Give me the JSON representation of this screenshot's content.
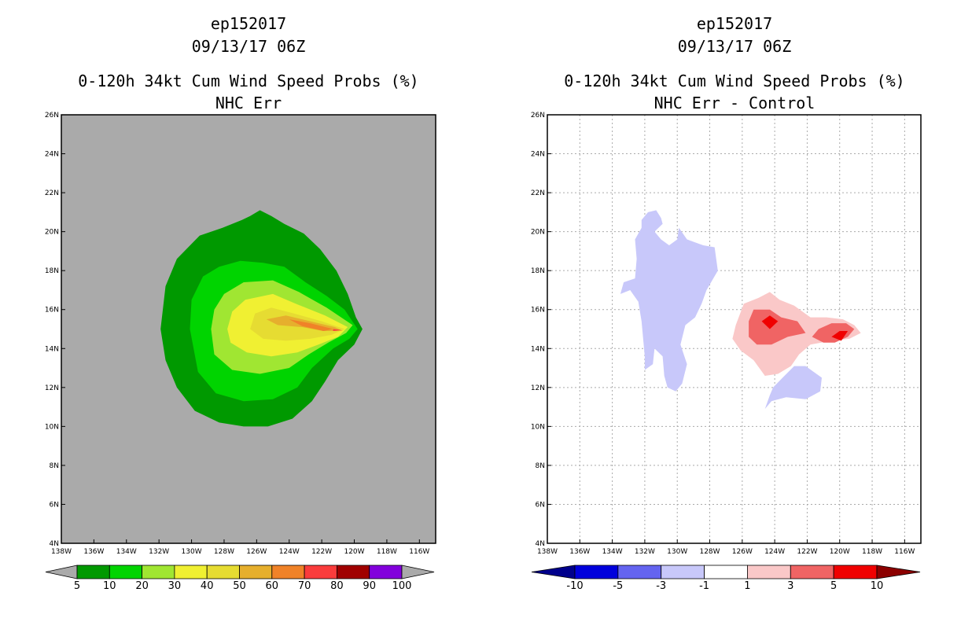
{
  "chart_data": [
    {
      "type": "contour",
      "storm_id": "ep152017",
      "datetime": "09/13/17 06Z",
      "title": "0-120h 34kt Cum Wind Speed Probs (%)",
      "subtitle": "NHC Err",
      "x_ticks": [
        "138W",
        "136W",
        "134W",
        "132W",
        "130W",
        "128W",
        "126W",
        "124W",
        "122W",
        "120W",
        "118W",
        "116W"
      ],
      "y_ticks": [
        "4N",
        "6N",
        "8N",
        "10N",
        "12N",
        "14N",
        "16N",
        "18N",
        "20N",
        "22N",
        "24N",
        "26N"
      ],
      "xlim": [
        -138,
        -115
      ],
      "ylim": [
        4,
        26
      ],
      "background_color": "#aaaaaa",
      "colorbar": {
        "labels": [
          "5",
          "10",
          "20",
          "30",
          "40",
          "50",
          "60",
          "70",
          "80",
          "90",
          "100"
        ],
        "colors": [
          "#009900",
          "#00d400",
          "#a0e632",
          "#f0f032",
          "#e6dc32",
          "#e6af2d",
          "#f08228",
          "#fa3c3c",
          "#a00000",
          "#8200dc"
        ],
        "end_color": "#aaaaaa"
      },
      "contours": [
        {
          "level": 5,
          "color": "#009900",
          "polygon": [
            [
              -131.9,
              15
            ],
            [
              -131.6,
              17.2
            ],
            [
              -130.9,
              18.6
            ],
            [
              -129.5,
              19.8
            ],
            [
              -128.1,
              20.2
            ],
            [
              -126.9,
              20.6
            ],
            [
              -126.4,
              20.8
            ],
            [
              -125.8,
              21.1
            ],
            [
              -125.1,
              20.8
            ],
            [
              -124.3,
              20.4
            ],
            [
              -123.1,
              19.9
            ],
            [
              -122.1,
              19.1
            ],
            [
              -121.1,
              18
            ],
            [
              -120.4,
              16.8
            ],
            [
              -119.9,
              15.6
            ],
            [
              -119.5,
              15.0
            ],
            [
              -120,
              14.2
            ],
            [
              -121,
              13.4
            ],
            [
              -121.8,
              12.3
            ],
            [
              -122.6,
              11.3
            ],
            [
              -123.8,
              10.4
            ],
            [
              -125.3,
              10.0
            ],
            [
              -126.8,
              10.0
            ],
            [
              -128.3,
              10.2
            ],
            [
              -129.8,
              10.8
            ],
            [
              -130.9,
              12.0
            ],
            [
              -131.6,
              13.4
            ]
          ]
        },
        {
          "level": 10,
          "color": "#00d400",
          "polygon": [
            [
              -130.1,
              15
            ],
            [
              -130.0,
              16.5
            ],
            [
              -129.3,
              17.7
            ],
            [
              -128.3,
              18.2
            ],
            [
              -127.0,
              18.5
            ],
            [
              -125.6,
              18.4
            ],
            [
              -124.3,
              18.2
            ],
            [
              -123.0,
              17.4
            ],
            [
              -121.7,
              16.7
            ],
            [
              -120.6,
              16.0
            ],
            [
              -119.8,
              15.0
            ],
            [
              -120.3,
              14.5
            ],
            [
              -121.3,
              14.0
            ],
            [
              -122.6,
              13.0
            ],
            [
              -123.5,
              12.0
            ],
            [
              -125.0,
              11.4
            ],
            [
              -126.8,
              11.3
            ],
            [
              -128.5,
              11.7
            ],
            [
              -129.6,
              12.8
            ]
          ]
        },
        {
          "level": 20,
          "color": "#a0e632",
          "polygon": [
            [
              -128.8,
              15
            ],
            [
              -128.6,
              16.0
            ],
            [
              -128.0,
              16.8
            ],
            [
              -126.8,
              17.4
            ],
            [
              -125.0,
              17.5
            ],
            [
              -123.4,
              16.9
            ],
            [
              -121.7,
              16.1
            ],
            [
              -120.1,
              15.2
            ],
            [
              -120.5,
              14.8
            ],
            [
              -121.6,
              14.3
            ],
            [
              -122.8,
              13.7
            ],
            [
              -124.0,
              13.0
            ],
            [
              -125.8,
              12.7
            ],
            [
              -127.5,
              12.9
            ],
            [
              -128.6,
              13.7
            ]
          ]
        },
        {
          "level": 30,
          "color": "#f0f032",
          "polygon": [
            [
              -127.8,
              15
            ],
            [
              -127.5,
              15.9
            ],
            [
              -126.7,
              16.5
            ],
            [
              -125.0,
              16.8
            ],
            [
              -123.6,
              16.3
            ],
            [
              -121.8,
              15.7
            ],
            [
              -120.4,
              15.1
            ],
            [
              -121.0,
              14.6
            ],
            [
              -122.2,
              14.2
            ],
            [
              -123.5,
              13.8
            ],
            [
              -125.1,
              13.6
            ],
            [
              -126.6,
              13.8
            ],
            [
              -127.6,
              14.3
            ]
          ]
        },
        {
          "level": 40,
          "color": "#e6dc32",
          "polygon": [
            [
              -126.4,
              15.0
            ],
            [
              -126.1,
              15.8
            ],
            [
              -125.1,
              16.1
            ],
            [
              -123.7,
              15.8
            ],
            [
              -122.0,
              15.4
            ],
            [
              -120.6,
              15.0
            ],
            [
              -121.4,
              14.7
            ],
            [
              -122.7,
              14.5
            ],
            [
              -124.2,
              14.4
            ],
            [
              -125.6,
              14.5
            ]
          ]
        },
        {
          "level": 50,
          "color": "#e6af2d",
          "polygon": [
            [
              -125.4,
              15.5
            ],
            [
              -124.2,
              15.7
            ],
            [
              -122.7,
              15.4
            ],
            [
              -121.2,
              15.1
            ],
            [
              -120.7,
              14.9
            ],
            [
              -121.9,
              14.9
            ],
            [
              -123.2,
              15.1
            ],
            [
              -124.7,
              15.2
            ]
          ]
        },
        {
          "level": 60,
          "color": "#f08228",
          "polygon": [
            [
              -124.0,
              15.5
            ],
            [
              -122.7,
              15.3
            ],
            [
              -121.3,
              15.0
            ],
            [
              -121.9,
              14.9
            ],
            [
              -123.2,
              15.15
            ]
          ]
        },
        {
          "level": 70,
          "color": "#fa3c3c",
          "polygon": [
            [
              -121.3,
              15.0
            ],
            [
              -120.8,
              14.95
            ],
            [
              -121.3,
              14.9
            ]
          ]
        }
      ]
    },
    {
      "type": "contour",
      "storm_id": "ep152017",
      "datetime": "09/13/17 06Z",
      "title": "0-120h 34kt Cum Wind Speed Probs (%)",
      "subtitle": "NHC Err - Control",
      "x_ticks": [
        "138W",
        "136W",
        "134W",
        "132W",
        "130W",
        "128W",
        "126W",
        "124W",
        "122W",
        "120W",
        "118W",
        "116W"
      ],
      "y_ticks": [
        "4N",
        "6N",
        "8N",
        "10N",
        "12N",
        "14N",
        "16N",
        "18N",
        "20N",
        "22N",
        "24N",
        "26N"
      ],
      "xlim": [
        -138,
        -115
      ],
      "ylim": [
        4,
        26
      ],
      "grid": true,
      "background_color": "#ffffff",
      "colorbar": {
        "labels": [
          "-10",
          "-5",
          "-3",
          "-1",
          "1",
          "3",
          "5",
          "10"
        ],
        "colors": [
          "#0000dc",
          "#6464f0",
          "#c8c8fa",
          "#ffffff",
          "#fac8c8",
          "#f06464",
          "#f00000"
        ],
        "start_color": "#00008c",
        "end_color": "#8c0000"
      },
      "contours": [
        {
          "level": -1,
          "color": "#c8c8fa",
          "polygon": [
            [
              -132.2,
              20.6
            ],
            [
              -131.8,
              21.0
            ],
            [
              -131.3,
              21.1
            ],
            [
              -131.0,
              20.7
            ],
            [
              -130.9,
              20.4
            ],
            [
              -131.4,
              20.0
            ],
            [
              -131.0,
              19.6
            ],
            [
              -130.5,
              19.3
            ],
            [
              -130.0,
              19.6
            ],
            [
              -129.9,
              20.2
            ],
            [
              -129.4,
              19.6
            ],
            [
              -128.4,
              19.3
            ],
            [
              -127.7,
              19.2
            ],
            [
              -127.5,
              18.0
            ],
            [
              -128.2,
              17.0
            ],
            [
              -128.5,
              16.3
            ],
            [
              -128.9,
              15.6
            ],
            [
              -129.5,
              15.2
            ],
            [
              -129.8,
              14.2
            ],
            [
              -129.4,
              13.2
            ],
            [
              -129.7,
              12.2
            ],
            [
              -130.1,
              11.8
            ],
            [
              -130.6,
              12.0
            ],
            [
              -130.8,
              12.6
            ],
            [
              -130.9,
              13.6
            ],
            [
              -131.4,
              14.0
            ],
            [
              -131.5,
              13.2
            ],
            [
              -132.0,
              12.9
            ],
            [
              -132.0,
              13.6
            ],
            [
              -132.2,
              15.4
            ],
            [
              -132.4,
              16.4
            ],
            [
              -132.9,
              17.0
            ],
            [
              -133.5,
              16.8
            ],
            [
              -133.3,
              17.4
            ],
            [
              -132.6,
              17.6
            ],
            [
              -132.5,
              18.6
            ],
            [
              -132.6,
              19.6
            ],
            [
              -132.2,
              20.2
            ]
          ]
        },
        {
          "level": -1,
          "color": "#c8c8fa",
          "polygon": [
            [
              -124.1,
              12.0
            ],
            [
              -123.4,
              12.6
            ],
            [
              -122.8,
              13.1
            ],
            [
              -122.1,
              13.1
            ],
            [
              -121.1,
              12.5
            ],
            [
              -121.2,
              11.8
            ],
            [
              -122.1,
              11.4
            ],
            [
              -123.3,
              11.5
            ],
            [
              -124.2,
              11.3
            ],
            [
              -124.6,
              10.9
            ],
            [
              -124.3,
              11.6
            ]
          ]
        },
        {
          "level": 1,
          "color": "#fac8c8",
          "polygon": [
            [
              -126.4,
              15.2
            ],
            [
              -126.6,
              14.5
            ],
            [
              -126.1,
              13.9
            ],
            [
              -125.3,
              13.4
            ],
            [
              -124.6,
              12.6
            ],
            [
              -123.8,
              12.7
            ],
            [
              -123.0,
              13.1
            ],
            [
              -122.5,
              13.7
            ],
            [
              -121.8,
              14.2
            ],
            [
              -120.5,
              14.4
            ],
            [
              -119.4,
              14.5
            ],
            [
              -118.7,
              14.8
            ],
            [
              -119.1,
              15.2
            ],
            [
              -119.8,
              15.5
            ],
            [
              -120.8,
              15.6
            ],
            [
              -121.8,
              15.6
            ],
            [
              -122.8,
              16.2
            ],
            [
              -123.7,
              16.5
            ],
            [
              -124.3,
              16.9
            ],
            [
              -125.0,
              16.6
            ],
            [
              -125.9,
              16.3
            ]
          ]
        },
        {
          "level": 3,
          "color": "#f06464",
          "polygon": [
            [
              -125.3,
              16.0
            ],
            [
              -124.3,
              16.0
            ],
            [
              -123.6,
              15.6
            ],
            [
              -122.6,
              15.4
            ],
            [
              -122.1,
              14.8
            ],
            [
              -123.2,
              14.6
            ],
            [
              -124.2,
              14.2
            ],
            [
              -125.1,
              14.2
            ],
            [
              -125.6,
              14.6
            ],
            [
              -125.6,
              15.4
            ]
          ]
        },
        {
          "level": 3,
          "color": "#f06464",
          "polygon": [
            [
              -121.3,
              15.0
            ],
            [
              -120.5,
              15.3
            ],
            [
              -119.6,
              15.3
            ],
            [
              -119.1,
              15.0
            ],
            [
              -119.5,
              14.6
            ],
            [
              -120.3,
              14.3
            ],
            [
              -121.0,
              14.3
            ],
            [
              -121.7,
              14.6
            ]
          ]
        },
        {
          "level": 5,
          "color": "#f00000",
          "polygon": [
            [
              -124.8,
              15.4
            ],
            [
              -124.3,
              15.7
            ],
            [
              -123.8,
              15.4
            ],
            [
              -124.3,
              15.0
            ]
          ]
        },
        {
          "level": 5,
          "color": "#f00000",
          "polygon": [
            [
              -120.5,
              14.6
            ],
            [
              -120.0,
              14.9
            ],
            [
              -119.5,
              14.9
            ],
            [
              -119.9,
              14.4
            ]
          ]
        }
      ]
    }
  ]
}
